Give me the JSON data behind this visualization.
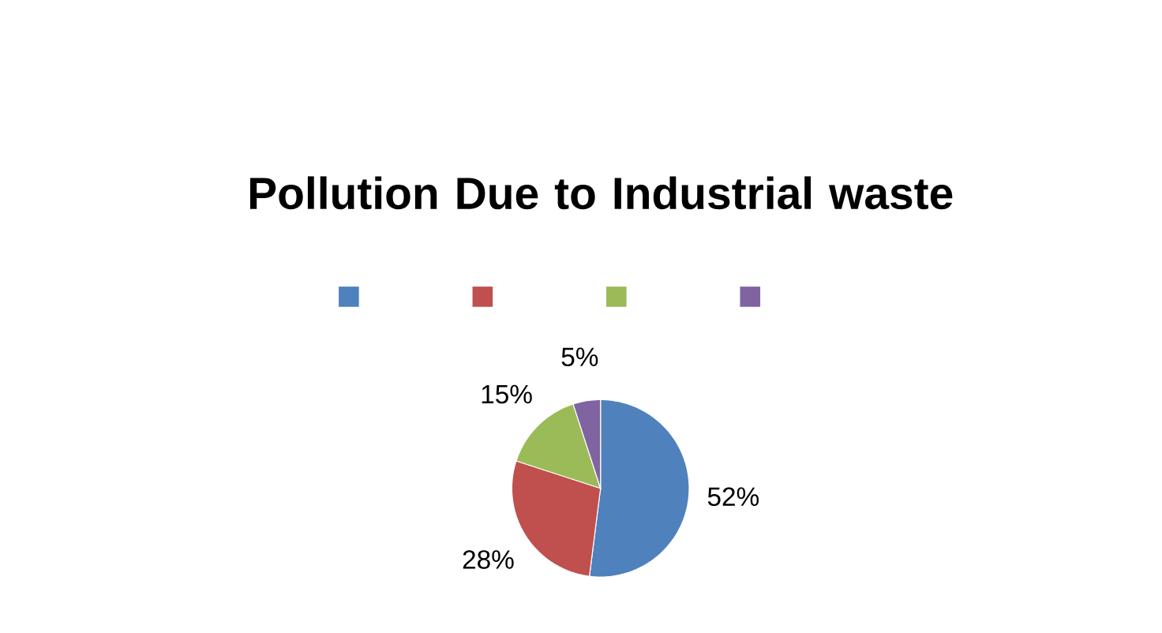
{
  "chart_data": {
    "type": "pie",
    "title": "Pollution Due to Industrial waste",
    "categories": [
      null,
      null,
      null,
      null
    ],
    "values": [
      52,
      28,
      15,
      5
    ],
    "colors": [
      "#4f81bd",
      "#c0504d",
      "#9bbb59",
      "#8064a2"
    ],
    "value_labels": [
      "52%",
      "28%",
      "15%",
      "5%"
    ]
  }
}
